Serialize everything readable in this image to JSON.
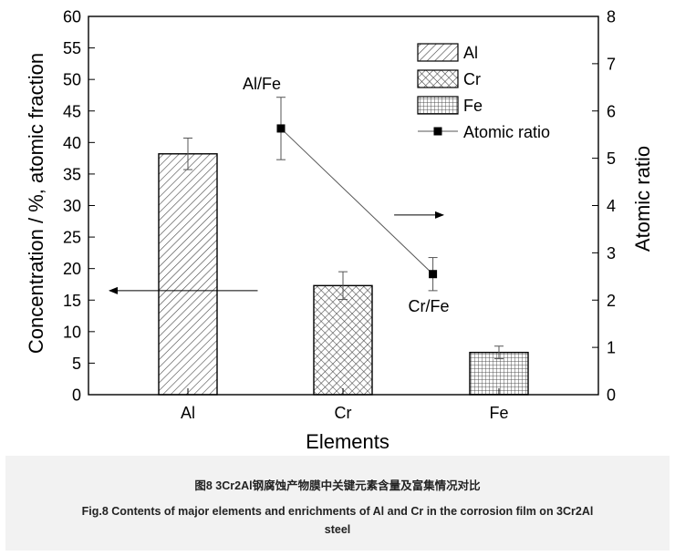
{
  "chart_data": {
    "type": "bar",
    "categories": [
      "Al",
      "Cr",
      "Fe"
    ],
    "series": [
      {
        "axis": "left",
        "values": [
          38.2,
          17.3,
          6.7
        ],
        "errors": [
          2.5,
          2.2,
          1.0
        ]
      },
      {
        "name": "Atomic ratio",
        "axis": "right",
        "type": "line",
        "x": [
          "Al",
          "Fe"
        ],
        "points": [
          {
            "x": 0.6,
            "y": 5.63,
            "err": 0.66
          },
          {
            "x": 1.58,
            "y": 2.55,
            "err": 0.35
          }
        ]
      }
    ],
    "legend": {
      "position": "top-right",
      "entries": [
        "Al",
        "Cr",
        "Fe",
        "Atomic ratio"
      ]
    },
    "xlabel": "Elements",
    "ylabel": "Concentration / %, atomic fraction",
    "y2label": "Atomic ratio",
    "ylim": [
      0,
      60
    ],
    "y2lim": [
      0,
      8
    ],
    "yticks": [
      0,
      5,
      10,
      15,
      20,
      25,
      30,
      35,
      40,
      45,
      50,
      55,
      60
    ],
    "y2ticks": [
      0,
      1,
      2,
      3,
      4,
      5,
      6,
      7,
      8
    ],
    "annotations": [
      "Al/Fe",
      "Cr/Fe"
    ],
    "arrows": [
      {
        "points_to": "left",
        "x": 0.45,
        "y": 16.5
      },
      {
        "points_to": "right",
        "x": 1.33,
        "y": 28.5
      }
    ],
    "hatches": {
      "Al": "diagonal",
      "Cr": "crosshatch",
      "Fe": "grid"
    },
    "colors": {
      "axis": "#000000",
      "bar_fill": "#ffffff",
      "hatch": "#444444",
      "error": "#555555"
    }
  },
  "caption": {
    "cn": "图8 3Cr2Al钢腐蚀产物膜中关键元素含量及富集情况对比",
    "en_line1": "Fig.8 Contents of major elements and enrichments of Al and Cr in the corrosion film on 3Cr2Al",
    "en_line2": "steel"
  }
}
